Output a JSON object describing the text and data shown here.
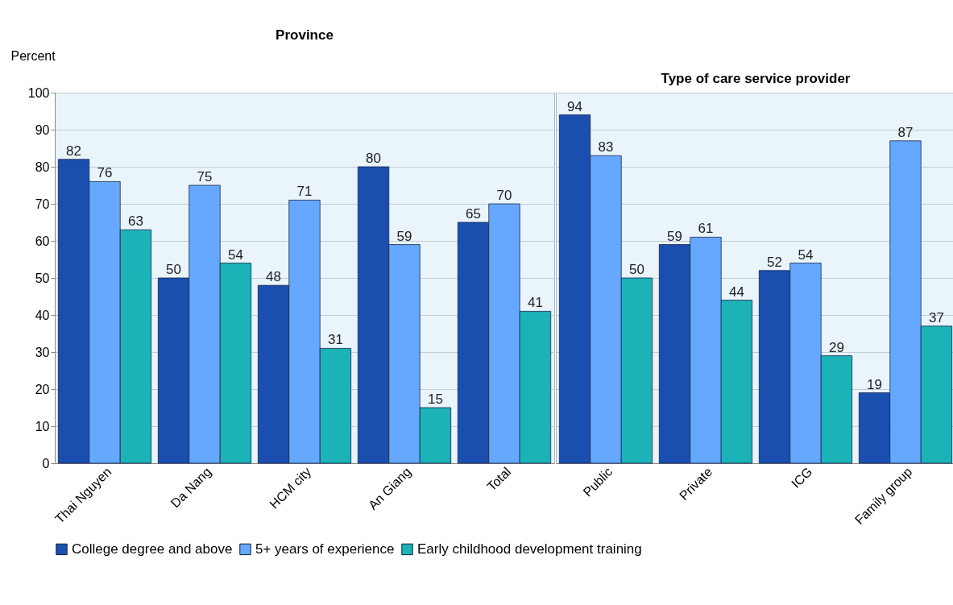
{
  "chart_data": [
    {
      "type": "bar",
      "title": "Province",
      "ylabel": "Percent",
      "categories": [
        "Thai Nguyen",
        "Da Nang",
        "HCM city",
        "An Giang",
        "Total"
      ],
      "series": [
        {
          "name": "College degree and above",
          "color": "#1a4fb0",
          "values": [
            82,
            50,
            48,
            80,
            65
          ]
        },
        {
          "name": "5+ years of experience",
          "color": "#66a8ff",
          "values": [
            76,
            75,
            71,
            59,
            70
          ]
        },
        {
          "name": "Early childhood development training",
          "color": "#1bb3b8",
          "values": [
            63,
            54,
            31,
            15,
            41
          ]
        }
      ],
      "ylim": [
        0,
        100
      ],
      "yticks": [
        0,
        10,
        20,
        30,
        40,
        50,
        60,
        70,
        80,
        90,
        100
      ],
      "grid": "y",
      "data_labels": true,
      "legend": "bottom"
    },
    {
      "type": "bar",
      "title": "Type of care service provider",
      "categories": [
        "Public",
        "Private",
        "ICG",
        "Family group"
      ],
      "series": [
        {
          "name": "College degree and above",
          "color": "#1a4fb0",
          "values": [
            94,
            59,
            52,
            19
          ]
        },
        {
          "name": "5+ years of experience",
          "color": "#66a8ff",
          "values": [
            83,
            61,
            54,
            87
          ]
        },
        {
          "name": "Early childhood development training",
          "color": "#1bb3b8",
          "values": [
            50,
            44,
            29,
            37
          ]
        }
      ],
      "ylim": [
        0,
        100
      ],
      "yticks": [
        0,
        10,
        20,
        30,
        40,
        50,
        60,
        70,
        80,
        90,
        100
      ],
      "grid": "y",
      "data_labels": true,
      "legend": "bottom",
      "tick_labels": "x"
    }
  ]
}
